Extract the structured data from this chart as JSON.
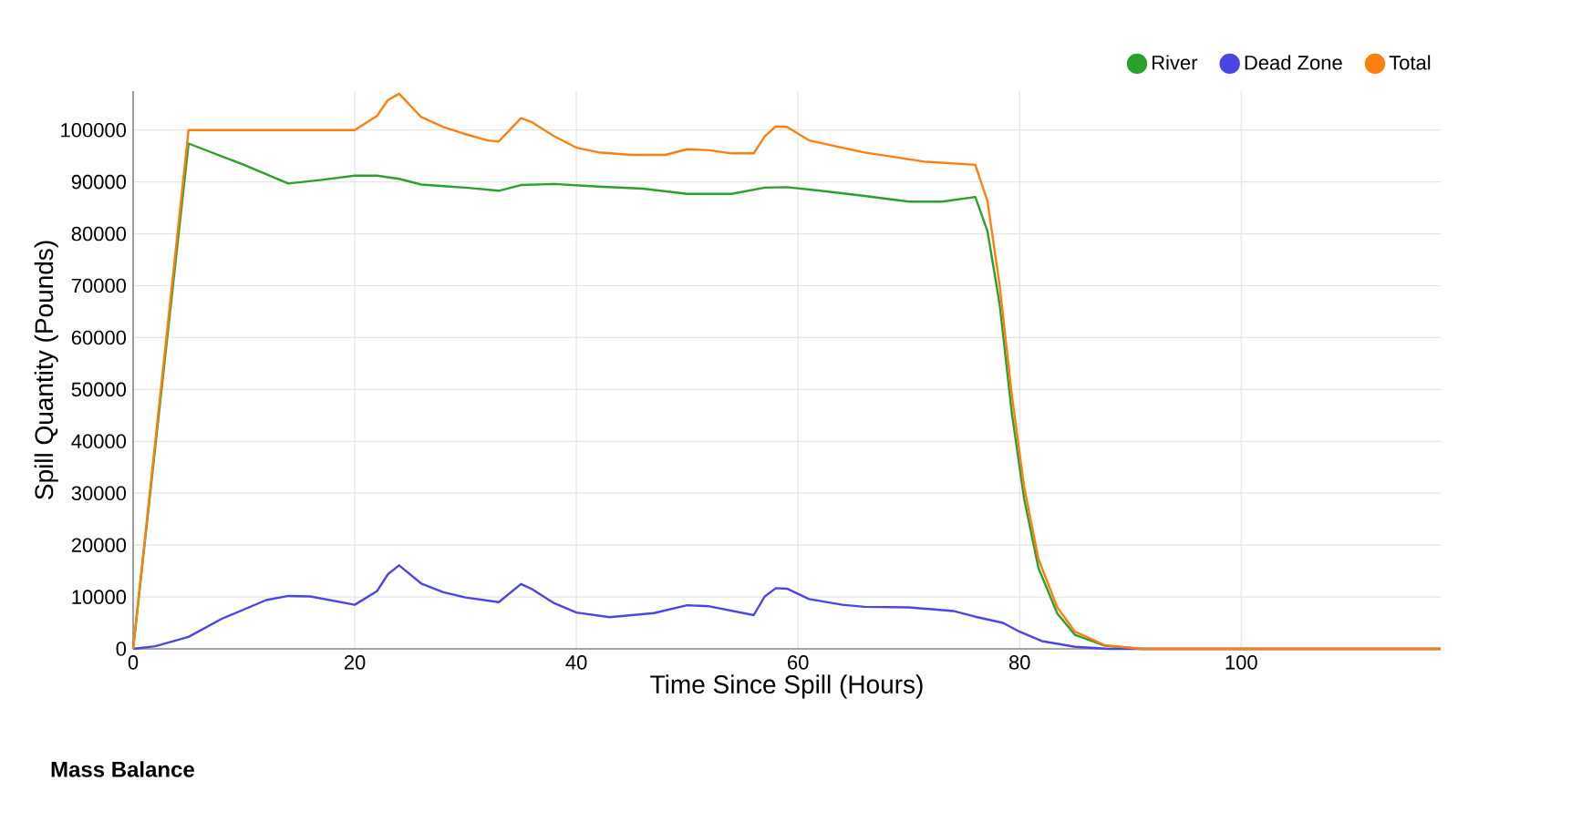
{
  "chart_data": {
    "type": "line",
    "xlabel": "Time Since Spill (Hours)",
    "ylabel": "Spill Quantity (Pounds)",
    "annotations": [
      "Mass Balance"
    ],
    "xlim": [
      0,
      118
    ],
    "xticks": [
      0,
      20,
      40,
      60,
      80,
      100
    ],
    "ylim": [
      0,
      107500
    ],
    "yticks": [
      0,
      10000,
      20000,
      30000,
      40000,
      50000,
      60000,
      70000,
      80000,
      90000,
      100000
    ],
    "grid": true,
    "legend": "top right",
    "marker": "none",
    "line_style": "solid",
    "series": [
      {
        "name": "River",
        "color": "#2ca02c",
        "x": [
          0,
          5,
          10,
          14,
          17,
          20,
          22,
          24,
          26,
          28,
          30,
          33,
          35,
          38,
          42,
          46,
          50,
          54,
          57,
          59,
          62,
          66,
          70,
          73,
          76,
          77.1,
          78.2,
          79.3,
          80.4,
          81.7,
          83.4,
          85,
          87.7,
          91,
          118
        ],
        "values": [
          0,
          97400,
          93300,
          89700,
          90400,
          91200,
          91200,
          90600,
          89500,
          89200,
          88900,
          88300,
          89400,
          89600,
          89100,
          88700,
          87700,
          87700,
          88900,
          89000,
          88300,
          87300,
          86200,
          86200,
          87100,
          80500,
          66400,
          45400,
          29000,
          15600,
          6800,
          2700,
          600,
          0,
          0
        ]
      },
      {
        "name": "Dead Zone",
        "color": "#4b45e6",
        "x": [
          0,
          2,
          5,
          8,
          12,
          14,
          16,
          20,
          22,
          23,
          24,
          26,
          28,
          30,
          33,
          35,
          36,
          38,
          40,
          43,
          47,
          50,
          52,
          56,
          57,
          58,
          59,
          61,
          64,
          66,
          70,
          74,
          76,
          78.5,
          80,
          82,
          85,
          88,
          118
        ],
        "values": [
          0,
          500,
          2300,
          5800,
          9400,
          10200,
          10100,
          8500,
          11100,
          14400,
          16100,
          12600,
          10900,
          9900,
          9000,
          12500,
          11500,
          8800,
          7000,
          6100,
          6900,
          8400,
          8200,
          6500,
          10100,
          11700,
          11600,
          9600,
          8500,
          8100,
          8000,
          7300,
          6200,
          5000,
          3300,
          1500,
          400,
          0,
          0
        ]
      },
      {
        "name": "Total",
        "color": "#ff7f0e",
        "x": [
          0,
          5,
          20,
          22,
          23,
          24,
          26,
          28,
          30,
          32,
          33,
          35,
          36,
          38,
          40,
          42,
          45,
          48,
          50,
          52,
          54,
          56,
          57,
          58,
          59,
          61,
          65.9,
          71.4,
          76,
          77.1,
          78.2,
          79.3,
          80.4,
          81.7,
          83.4,
          85,
          87.7,
          91,
          118
        ],
        "values": [
          0,
          100000,
          100000,
          102700,
          105800,
          107000,
          102500,
          100600,
          99200,
          98000,
          97800,
          102300,
          101500,
          98800,
          96600,
          95700,
          95200,
          95200,
          96300,
          96100,
          95500,
          95500,
          98800,
          100700,
          100600,
          98000,
          95700,
          93900,
          93300,
          86300,
          70000,
          48900,
          31300,
          17300,
          8000,
          3300,
          700,
          0,
          0
        ]
      }
    ]
  }
}
